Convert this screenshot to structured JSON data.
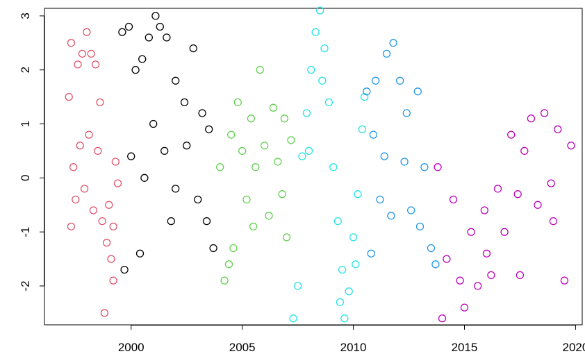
{
  "chart_data": {
    "type": "scatter",
    "title": "",
    "xlabel": "",
    "ylabel": "",
    "xlim": [
      1996.1,
      2020.3
    ],
    "ylim": [
      -2.72,
      3.14
    ],
    "x_ticks": [
      2000,
      2005,
      2010,
      2015,
      2020
    ],
    "x_tick_labels": [
      "2000",
      "2005",
      "2010",
      "2015",
      "2020"
    ],
    "y_ticks": [
      -2,
      -1,
      0,
      1,
      2,
      3
    ],
    "y_tick_labels": [
      "-2",
      "-1",
      "0",
      "1",
      "2",
      "3"
    ],
    "grid": false,
    "legend": "none",
    "marker": "open-circle",
    "series": [
      {
        "color": "#DF536B",
        "points": [
          [
            1997.2,
            1.5
          ],
          [
            1997.3,
            2.5
          ],
          [
            1997.6,
            2.1
          ],
          [
            1997.8,
            2.3
          ],
          [
            1998.0,
            2.7
          ],
          [
            1998.2,
            2.3
          ],
          [
            1998.4,
            2.1
          ],
          [
            1997.4,
            0.2
          ],
          [
            1997.5,
            -0.4
          ],
          [
            1997.7,
            0.6
          ],
          [
            1997.9,
            -0.2
          ],
          [
            1998.1,
            0.8
          ],
          [
            1998.3,
            -0.6
          ],
          [
            1998.5,
            0.5
          ],
          [
            1998.7,
            -0.8
          ],
          [
            1998.9,
            -1.2
          ],
          [
            1999.0,
            -0.5
          ],
          [
            1999.1,
            -1.5
          ],
          [
            1999.2,
            -1.9
          ],
          [
            1999.3,
            0.3
          ],
          [
            1999.4,
            -0.1
          ],
          [
            1998.8,
            -2.5
          ],
          [
            1997.3,
            -0.9
          ],
          [
            1998.6,
            1.4
          ],
          [
            1999.2,
            -0.9
          ]
        ]
      },
      {
        "color": "#000000",
        "points": [
          [
            1999.6,
            2.7
          ],
          [
            1999.9,
            2.8
          ],
          [
            2000.2,
            2.0
          ],
          [
            2000.5,
            2.2
          ],
          [
            2000.8,
            2.6
          ],
          [
            2001.1,
            3.0
          ],
          [
            2001.3,
            2.8
          ],
          [
            2001.6,
            2.6
          ],
          [
            2002.0,
            1.8
          ],
          [
            2002.4,
            1.4
          ],
          [
            2002.8,
            2.4
          ],
          [
            2003.2,
            1.2
          ],
          [
            2003.5,
            0.9
          ],
          [
            2000.0,
            0.4
          ],
          [
            2000.6,
            0.0
          ],
          [
            2001.0,
            1.0
          ],
          [
            2001.5,
            0.5
          ],
          [
            2002.0,
            -0.2
          ],
          [
            2002.5,
            0.6
          ],
          [
            2003.0,
            -0.4
          ],
          [
            2003.4,
            -0.8
          ],
          [
            2003.7,
            -1.3
          ],
          [
            2001.8,
            -0.8
          ],
          [
            2000.4,
            -1.4
          ],
          [
            1999.7,
            -1.7
          ]
        ]
      },
      {
        "color": "#61D04F",
        "points": [
          [
            2004.0,
            0.2
          ],
          [
            2004.2,
            -1.9
          ],
          [
            2004.4,
            -1.6
          ],
          [
            2004.6,
            -1.3
          ],
          [
            2004.8,
            1.4
          ],
          [
            2005.0,
            0.5
          ],
          [
            2005.2,
            -0.4
          ],
          [
            2005.4,
            1.1
          ],
          [
            2005.6,
            0.2
          ],
          [
            2005.8,
            2.0
          ],
          [
            2006.0,
            0.6
          ],
          [
            2006.2,
            -0.7
          ],
          [
            2006.4,
            1.3
          ],
          [
            2006.6,
            0.3
          ],
          [
            2006.8,
            -0.3
          ],
          [
            2007.0,
            -1.1
          ],
          [
            2007.2,
            0.7
          ],
          [
            2004.5,
            0.8
          ],
          [
            2005.5,
            -0.9
          ],
          [
            2006.9,
            1.1
          ]
        ]
      },
      {
        "color": "#28E2E5",
        "points": [
          [
            2007.3,
            -2.6
          ],
          [
            2007.5,
            -2.0
          ],
          [
            2007.7,
            0.4
          ],
          [
            2007.9,
            1.2
          ],
          [
            2008.1,
            2.0
          ],
          [
            2008.3,
            2.7
          ],
          [
            2008.5,
            3.1
          ],
          [
            2008.7,
            2.4
          ],
          [
            2008.9,
            1.4
          ],
          [
            2009.1,
            0.2
          ],
          [
            2009.3,
            -0.8
          ],
          [
            2009.5,
            -1.7
          ],
          [
            2009.6,
            -2.6
          ],
          [
            2009.8,
            -2.1
          ],
          [
            2010.0,
            -1.1
          ],
          [
            2010.2,
            -0.3
          ],
          [
            2010.4,
            0.9
          ],
          [
            2010.5,
            1.5
          ],
          [
            2008.0,
            0.5
          ],
          [
            2008.6,
            1.8
          ],
          [
            2009.4,
            -2.3
          ],
          [
            2010.1,
            -1.6
          ]
        ]
      },
      {
        "color": "#2297E6",
        "points": [
          [
            2010.6,
            1.6
          ],
          [
            2010.9,
            0.8
          ],
          [
            2011.2,
            -0.4
          ],
          [
            2011.5,
            2.3
          ],
          [
            2011.8,
            2.5
          ],
          [
            2012.1,
            1.8
          ],
          [
            2012.3,
            0.3
          ],
          [
            2012.6,
            -0.6
          ],
          [
            2012.9,
            1.6
          ],
          [
            2013.2,
            0.2
          ],
          [
            2013.5,
            -1.3
          ],
          [
            2013.7,
            -1.6
          ],
          [
            2011.0,
            1.8
          ],
          [
            2011.7,
            -0.7
          ],
          [
            2012.4,
            1.2
          ],
          [
            2013.0,
            -0.9
          ],
          [
            2010.8,
            -1.4
          ],
          [
            2011.4,
            0.4
          ]
        ]
      },
      {
        "color": "#BC00BA",
        "points": [
          [
            2013.8,
            0.2
          ],
          [
            2014.0,
            -2.6
          ],
          [
            2014.2,
            -1.5
          ],
          [
            2014.5,
            -0.4
          ],
          [
            2014.8,
            -1.9
          ],
          [
            2015.0,
            -2.4
          ],
          [
            2015.3,
            -1.0
          ],
          [
            2015.6,
            -2.0
          ],
          [
            2015.9,
            -0.6
          ],
          [
            2016.2,
            -1.8
          ],
          [
            2016.5,
            -0.2
          ],
          [
            2016.8,
            -1.0
          ],
          [
            2017.1,
            0.8
          ],
          [
            2017.4,
            -0.3
          ],
          [
            2017.7,
            0.5
          ],
          [
            2018.0,
            1.1
          ],
          [
            2018.3,
            -0.5
          ],
          [
            2018.6,
            1.2
          ],
          [
            2018.9,
            -0.1
          ],
          [
            2019.2,
            0.9
          ],
          [
            2019.5,
            -1.9
          ],
          [
            2019.8,
            0.6
          ],
          [
            2017.5,
            -1.8
          ],
          [
            2016.0,
            -1.4
          ],
          [
            2019.0,
            -0.8
          ]
        ]
      }
    ]
  }
}
